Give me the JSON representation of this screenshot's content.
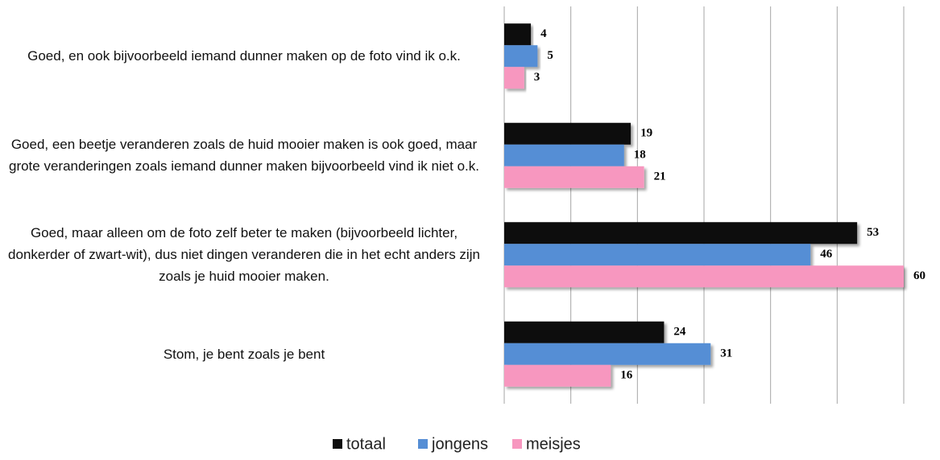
{
  "chart_data": {
    "type": "bar",
    "orientation": "horizontal",
    "categories": [
      "Goed, en ook bijvoorbeeld iemand dunner maken op de foto vind ik o.k.",
      "Goed, een beetje veranderen zoals de huid mooier maken is ook goed, maar grote veranderingen zoals iemand dunner maken bijvoorbeeld vind ik niet o.k.",
      "Goed, maar alleen om de foto zelf beter te maken (bijvoorbeeld lichter, donkerder of zwart-wit), dus niet dingen veranderen die in het echt anders zijn zoals je huid mooier maken.",
      "Stom, je bent zoals je bent"
    ],
    "series": [
      {
        "name": "totaal",
        "color": "#0d0d0d",
        "values": [
          4,
          19,
          53,
          24
        ]
      },
      {
        "name": "jongens",
        "color": "#558ed5",
        "values": [
          5,
          18,
          46,
          31
        ]
      },
      {
        "name": "meisjes",
        "color": "#f797bf",
        "values": [
          3,
          21,
          60,
          16
        ]
      }
    ],
    "xlim": [
      0,
      60
    ],
    "xticks": [
      0,
      10,
      20,
      30,
      40,
      50,
      60
    ],
    "grid": true,
    "legend": "bottom"
  }
}
